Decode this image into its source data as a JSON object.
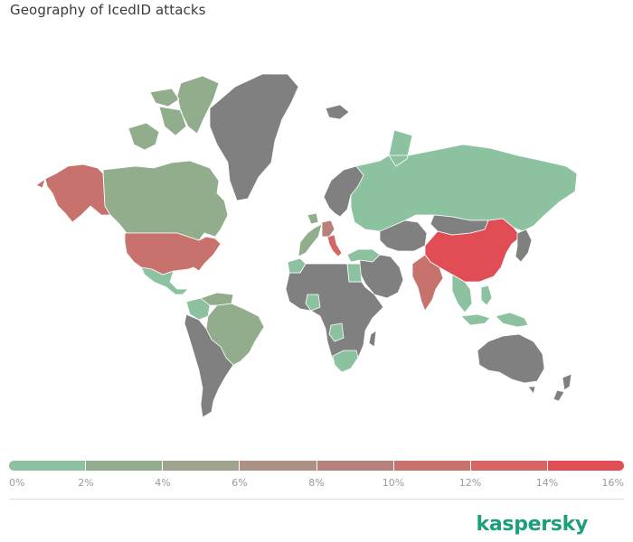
{
  "title": "Geography of IcedID attacks",
  "brand": "kaspersky",
  "colors": {
    "no_data": "#808080",
    "border": "#ffffff",
    "brand": "#1d9f7d",
    "scale": [
      "#8cc2a0",
      "#91ad8b",
      "#9fa38c",
      "#ad9183",
      "#b8807a",
      "#c8726e",
      "#d66563",
      "#e04d55"
    ]
  },
  "legend": {
    "labels": [
      "0%",
      "2%",
      "4%",
      "6%",
      "8%",
      "10%",
      "12%",
      "14%",
      "16%"
    ]
  },
  "map": {
    "countries": [
      {
        "name": "Alaska (USA)",
        "share": 11
      },
      {
        "name": "Canada",
        "share": 3
      },
      {
        "name": "USA",
        "share": 11
      },
      {
        "name": "Mexico",
        "share": 1
      },
      {
        "name": "Greenland",
        "share": null
      },
      {
        "name": "Brazil",
        "share": 3
      },
      {
        "name": "Colombia",
        "share": 1
      },
      {
        "name": "Venezuela",
        "share": 2
      },
      {
        "name": "Russia",
        "share": 1
      },
      {
        "name": "China",
        "share": 15
      },
      {
        "name": "India",
        "share": 10
      },
      {
        "name": "Italy",
        "share": 13
      },
      {
        "name": "Germany",
        "share": 8
      },
      {
        "name": "Turkey",
        "share": 1
      },
      {
        "name": "Mongolia",
        "share": null
      },
      {
        "name": "Central Asia",
        "share": null
      },
      {
        "name": "Middle East",
        "share": null
      },
      {
        "name": "Japan",
        "share": null
      },
      {
        "name": "Indonesia",
        "share": 1
      },
      {
        "name": "Australia",
        "share": null
      },
      {
        "name": "New Zealand",
        "share": null
      },
      {
        "name": "Africa",
        "share": null
      },
      {
        "name": "Nigeria",
        "share": 1
      },
      {
        "name": "South Africa",
        "share": 1
      },
      {
        "name": "Angola",
        "share": 1
      },
      {
        "name": "Egypt",
        "share": 1
      },
      {
        "name": "Morocco",
        "share": 1
      },
      {
        "name": "Southern South America",
        "share": null
      },
      {
        "name": "Western Europe",
        "share": 2
      },
      {
        "name": "Scandinavia",
        "share": null
      },
      {
        "name": "Southeast Asia",
        "share": 1
      }
    ]
  }
}
